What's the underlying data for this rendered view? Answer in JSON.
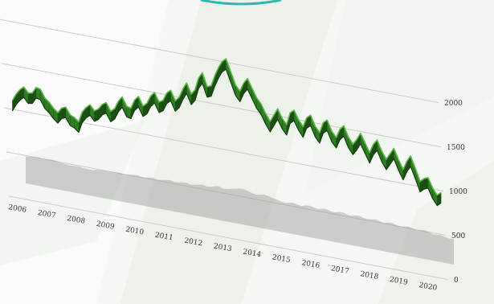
{
  "chart_data": {
    "type": "area",
    "title": "",
    "xlabel": "",
    "ylabel": "",
    "x_tick_labels": [
      "2006",
      "2007",
      "2008",
      "2009",
      "2010",
      "2011",
      "2012",
      "2013",
      "2014",
      "2015",
      "2016",
      "2017",
      "2018",
      "2019",
      "2020"
    ],
    "y_tick_labels": [
      "0",
      "500",
      "1000",
      "1500",
      "2000"
    ],
    "ylim": [
      0,
      2000
    ],
    "grid": true,
    "colors": {
      "series": "#2f7d22",
      "series_dark": "#1c4f14",
      "shadow": "#9a9a9a",
      "grid": "#c8ccc8",
      "accent": "#2eb8b0"
    },
    "series": [
      {
        "x_start": 2006.0,
        "x_end": 2020.6,
        "values": [
          1100,
          1180,
          1240,
          1280,
          1220,
          1230,
          1300,
          1290,
          1200,
          1160,
          1100,
          1060,
          1120,
          1140,
          1060,
          1040,
          1000,
          1120,
          1180,
          1220,
          1160,
          1190,
          1250,
          1280,
          1190,
          1230,
          1320,
          1380,
          1280,
          1270,
          1370,
          1420,
          1320,
          1360,
          1450,
          1500,
          1400,
          1430,
          1520,
          1560,
          1450,
          1500,
          1600,
          1680,
          1560,
          1620,
          1760,
          1830,
          1680,
          1700,
          1820,
          1920,
          2000,
          2040,
          1900,
          1760,
          1700,
          1800,
          1860,
          1760,
          1660,
          1600,
          1500,
          1420,
          1500,
          1580,
          1480,
          1420,
          1560,
          1600,
          1500,
          1430,
          1540,
          1580,
          1460,
          1400,
          1520,
          1560,
          1440,
          1380,
          1480,
          1530,
          1410,
          1340,
          1400,
          1480,
          1380,
          1280,
          1380,
          1440,
          1320,
          1240,
          1310,
          1380,
          1260,
          1160,
          1260,
          1330,
          1200,
          1060,
          1100,
          1120,
          1010,
          940,
          980
        ]
      }
    ]
  }
}
